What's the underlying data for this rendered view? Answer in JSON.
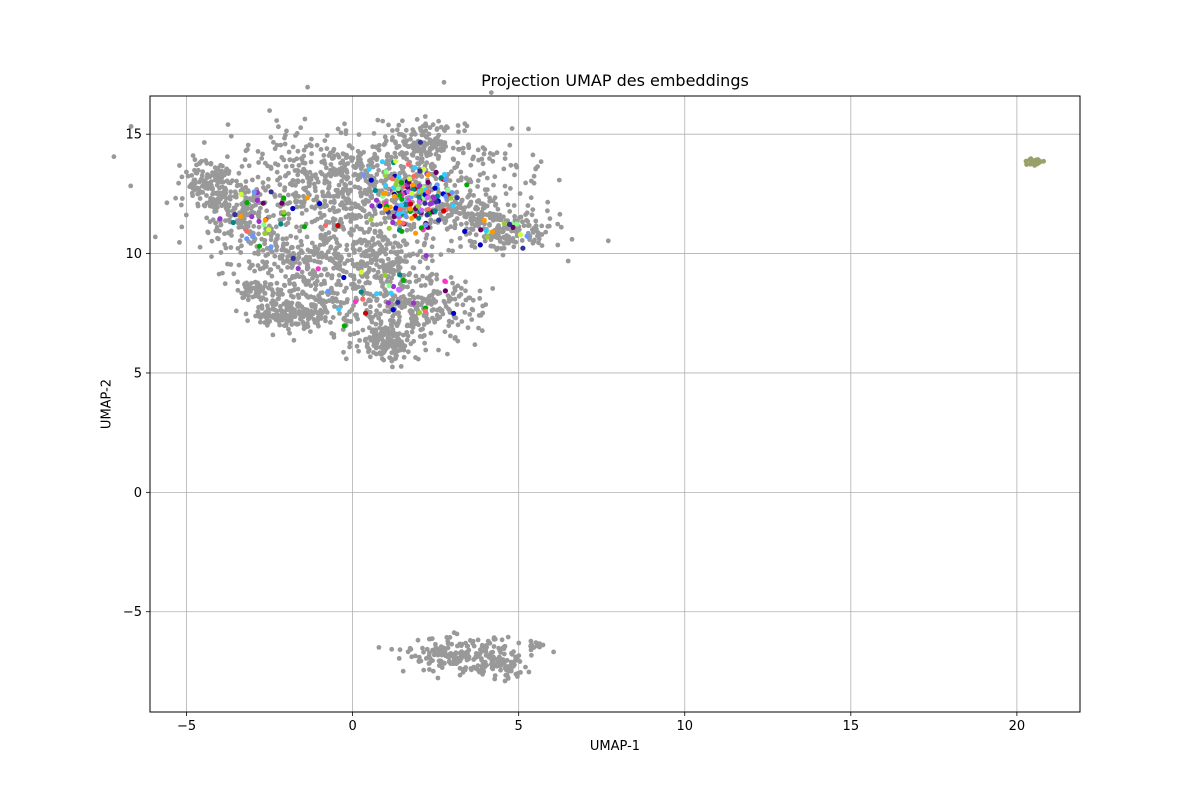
{
  "chart_data": {
    "type": "scatter",
    "title": "Projection UMAP des embeddings",
    "xlabel": "UMAP-1",
    "ylabel": "UMAP-2",
    "xlim": [
      -6.1,
      21.9
    ],
    "ylim": [
      -9.2,
      16.6
    ],
    "xticks": [
      -5,
      0,
      5,
      10,
      15,
      20
    ],
    "yticks": [
      -5,
      0,
      5,
      10,
      15
    ],
    "xtick_labels": [
      "−5",
      "0",
      "5",
      "10",
      "15",
      "20"
    ],
    "ytick_labels": [
      "−5",
      "0",
      "5",
      "10",
      "15"
    ],
    "grid": true,
    "base_color": "#999999",
    "series": [
      {
        "color": "#999999",
        "clusters": [
          {
            "cx": 0.5,
            "cy": 12.8,
            "sx": 2.2,
            "sy": 1.2,
            "n": 900
          },
          {
            "cx": -4.3,
            "cy": 13.0,
            "sx": 0.4,
            "sy": 0.5,
            "n": 120
          },
          {
            "cx": -3.5,
            "cy": 11.8,
            "sx": 0.6,
            "sy": 0.6,
            "n": 150
          },
          {
            "cx": 2.2,
            "cy": 14.6,
            "sx": 0.5,
            "sy": 0.4,
            "n": 120
          },
          {
            "cx": 4.7,
            "cy": 10.9,
            "sx": 0.7,
            "sy": 0.4,
            "n": 150
          },
          {
            "cx": 3.5,
            "cy": 11.7,
            "sx": 0.6,
            "sy": 0.5,
            "n": 100
          },
          {
            "cx": -1.3,
            "cy": 9.8,
            "sx": 1.3,
            "sy": 0.6,
            "n": 250
          },
          {
            "cx": -1.2,
            "cy": 8.0,
            "sx": 0.9,
            "sy": 0.6,
            "n": 200
          },
          {
            "cx": -2.0,
            "cy": 7.4,
            "sx": 0.5,
            "sy": 0.25,
            "n": 100
          },
          {
            "cx": -3.0,
            "cy": 8.5,
            "sx": 0.25,
            "sy": 0.2,
            "n": 50
          },
          {
            "cx": 1.8,
            "cy": 7.6,
            "sx": 1.0,
            "sy": 0.7,
            "n": 300
          },
          {
            "cx": 1.0,
            "cy": 6.3,
            "sx": 0.5,
            "sy": 0.4,
            "n": 120
          },
          {
            "cx": 1.0,
            "cy": 9.6,
            "sx": 0.9,
            "sy": 0.6,
            "n": 150
          },
          {
            "cx": 3.2,
            "cy": -6.8,
            "sx": 0.8,
            "sy": 0.35,
            "n": 180
          },
          {
            "cx": 4.4,
            "cy": -7.3,
            "sx": 0.5,
            "sy": 0.3,
            "n": 80
          },
          {
            "cx": 5.5,
            "cy": -6.4,
            "sx": 0.15,
            "sy": 0.1,
            "n": 15
          }
        ]
      },
      {
        "color": "#9aa06a",
        "clusters": [
          {
            "cx": 20.55,
            "cy": 13.85,
            "sx": 0.12,
            "sy": 0.07,
            "n": 30
          }
        ]
      }
    ],
    "highlight_colors": [
      "#0000cc",
      "#cc0000",
      "#00aa00",
      "#9933cc",
      "#ff33cc",
      "#33ccff",
      "#ccff33",
      "#ff9900",
      "#008888",
      "#660066",
      "#88ff88",
      "#333399",
      "#ff6666",
      "#6699ff",
      "#99cc33",
      "#cc66ff"
    ],
    "highlight_regions": [
      {
        "cx": 1.8,
        "cy": 12.3,
        "sx": 1.1,
        "sy": 1.1,
        "n": 170
      },
      {
        "cx": -2.5,
        "cy": 11.6,
        "sx": 1.3,
        "sy": 1.2,
        "n": 35
      },
      {
        "cx": 1.0,
        "cy": 8.5,
        "sx": 1.4,
        "sy": 1.4,
        "n": 30
      },
      {
        "cx": 4.5,
        "cy": 11.0,
        "sx": 0.8,
        "sy": 0.5,
        "n": 15
      }
    ]
  }
}
